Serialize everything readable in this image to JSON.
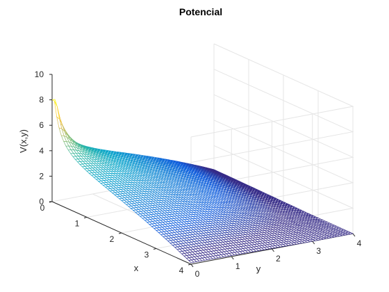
{
  "chart_data": {
    "type": "surface",
    "title": "Potencial",
    "xlabel": "x",
    "ylabel": "y",
    "zlabel": "V(x,y)",
    "xlim": [
      0,
      4
    ],
    "ylim": [
      0,
      4
    ],
    "zlim": [
      0,
      10
    ],
    "x_ticks": [
      "0",
      "1",
      "2",
      "3",
      "4"
    ],
    "y_ticks": [
      "0",
      "1",
      "2",
      "3",
      "4"
    ],
    "z_ticks": [
      "0",
      "2",
      "4",
      "6",
      "8",
      "10"
    ],
    "grid": true,
    "colormap": "parula",
    "mesh_size": 60,
    "surface": {
      "description_values": {
        "peak_location": [
          0,
          0
        ],
        "peak_value": 8,
        "value_at_far_corner": 0,
        "value_at_corner_x0_y4": 0.5,
        "value_at_corner_x4_y0": 0.5
      }
    }
  },
  "colors": {
    "axis": "#262626",
    "grid": "#e5e5e5",
    "colormap": [
      "#352a87",
      "#0f5cdd",
      "#1481d6",
      "#06a4ca",
      "#2eb7a4",
      "#87bf77",
      "#d1bb59",
      "#fec832",
      "#f9fb0e"
    ]
  }
}
